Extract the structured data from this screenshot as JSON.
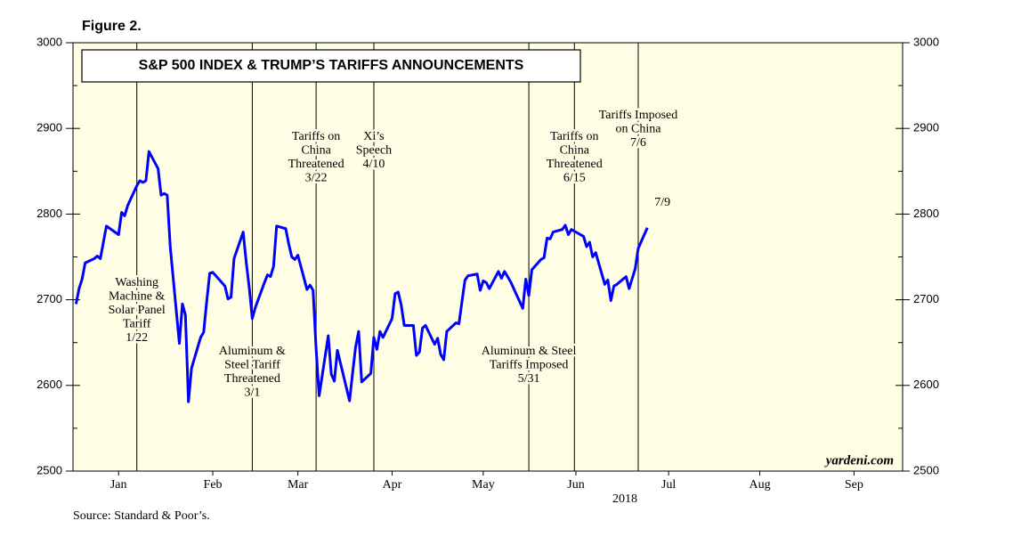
{
  "chart_data": {
    "type": "line",
    "figure_label": "Figure 2.",
    "title": "S&P 500 INDEX & TRUMP’S TARIFFS ANNOUNCEMENTS",
    "xlabel": "2018",
    "source": "Source: Standard & Poor’s.",
    "watermark": "yardeni.com",
    "end_label": "7/9",
    "color": "#0000ff",
    "xlim": [
      0,
      273
    ],
    "xticks": [
      {
        "value": 15,
        "label": "Jan"
      },
      {
        "value": 46,
        "label": "Feb"
      },
      {
        "value": 74,
        "label": "Mar"
      },
      {
        "value": 105,
        "label": "Apr"
      },
      {
        "value": 135,
        "label": "May"
      },
      {
        "value": 165.5,
        "label": "Jun"
      },
      {
        "value": 196,
        "label": "Jul"
      },
      {
        "value": 226,
        "label": "Aug"
      },
      {
        "value": 257,
        "label": "Sep"
      }
    ],
    "ylim": [
      2500,
      3000
    ],
    "yticks": [
      2500,
      2600,
      2700,
      2800,
      2900,
      3000
    ],
    "x": [
      1,
      2,
      3,
      4,
      7,
      8,
      9,
      10,
      11,
      15,
      16,
      17,
      18,
      21,
      22,
      23,
      24,
      25,
      28,
      29,
      30,
      31,
      32,
      35,
      36,
      37,
      38,
      39,
      42,
      43,
      44,
      45,
      46,
      50,
      51,
      52,
      53,
      56,
      57,
      58,
      59,
      60,
      63,
      64,
      65,
      66,
      67,
      70,
      71,
      72,
      73,
      74,
      77,
      78,
      79,
      80,
      81,
      84,
      85,
      86,
      87,
      91,
      92,
      93,
      94,
      95,
      98,
      99,
      100,
      101,
      102,
      105,
      106,
      107,
      108,
      109,
      112,
      113,
      114,
      115,
      116,
      119,
      120,
      121,
      122,
      123,
      126,
      127,
      128,
      129,
      130,
      133,
      134,
      135,
      136,
      137,
      140,
      141,
      142,
      143,
      144,
      148,
      149,
      150,
      151,
      154,
      155,
      156,
      157,
      158,
      161,
      162,
      163,
      164,
      165,
      168,
      169,
      170,
      171,
      172,
      175,
      176,
      177,
      178,
      179,
      182,
      183,
      185,
      186,
      189
    ],
    "values": [
      2695,
      2713,
      2724,
      2743,
      2748,
      2751,
      2748,
      2767,
      2786,
      2776,
      2802,
      2798,
      2810,
      2833,
      2839,
      2837,
      2839,
      2873,
      2853,
      2822,
      2824,
      2822,
      2762,
      2649,
      2695,
      2682,
      2581,
      2620,
      2656,
      2662,
      2698,
      2731,
      2732,
      2716,
      2701,
      2703,
      2748,
      2779,
      2744,
      2714,
      2678,
      2691,
      2720,
      2729,
      2727,
      2739,
      2786,
      2783,
      2765,
      2750,
      2747,
      2752,
      2712,
      2717,
      2711,
      2643,
      2588,
      2658,
      2613,
      2605,
      2641,
      2582,
      2614,
      2645,
      2663,
      2604,
      2614,
      2656,
      2642,
      2663,
      2656,
      2678,
      2707,
      2709,
      2694,
      2670,
      2670,
      2635,
      2639,
      2667,
      2670,
      2648,
      2655,
      2636,
      2630,
      2663,
      2673,
      2672,
      2698,
      2723,
      2728,
      2730,
      2711,
      2722,
      2720,
      2713,
      2733,
      2725,
      2733,
      2727,
      2721,
      2690,
      2724,
      2705,
      2735,
      2747,
      2749,
      2772,
      2771,
      2779,
      2782,
      2787,
      2776,
      2782,
      2780,
      2774,
      2762,
      2767,
      2750,
      2755,
      2718,
      2723,
      2699,
      2716,
      2718,
      2727,
      2713,
      2736,
      2760,
      2784
    ],
    "annotations": [
      {
        "x": 21,
        "lines": [
          "Washing",
          "Machine &",
          "Solar Panel",
          "Tariff",
          "1/22"
        ]
      },
      {
        "x": 59,
        "lines": [
          "Aluminum &",
          "Steel Tariff",
          "Threatened",
          "3/1"
        ]
      },
      {
        "x": 80,
        "lines": [
          "Tariffs on",
          "China",
          "Threatened",
          "3/22"
        ]
      },
      {
        "x": 99,
        "lines": [
          "Xi’s",
          "Speech",
          "4/10"
        ]
      },
      {
        "x": 150,
        "lines": [
          "Aluminum & Steel",
          "Tariffs Imposed",
          "5/31"
        ]
      },
      {
        "x": 165,
        "lines": [
          "Tariffs on",
          "China",
          "Threatened",
          "6/15"
        ]
      },
      {
        "x": 186,
        "lines": [
          "Tariffs Imposed",
          "on China",
          "7/6"
        ]
      }
    ]
  }
}
